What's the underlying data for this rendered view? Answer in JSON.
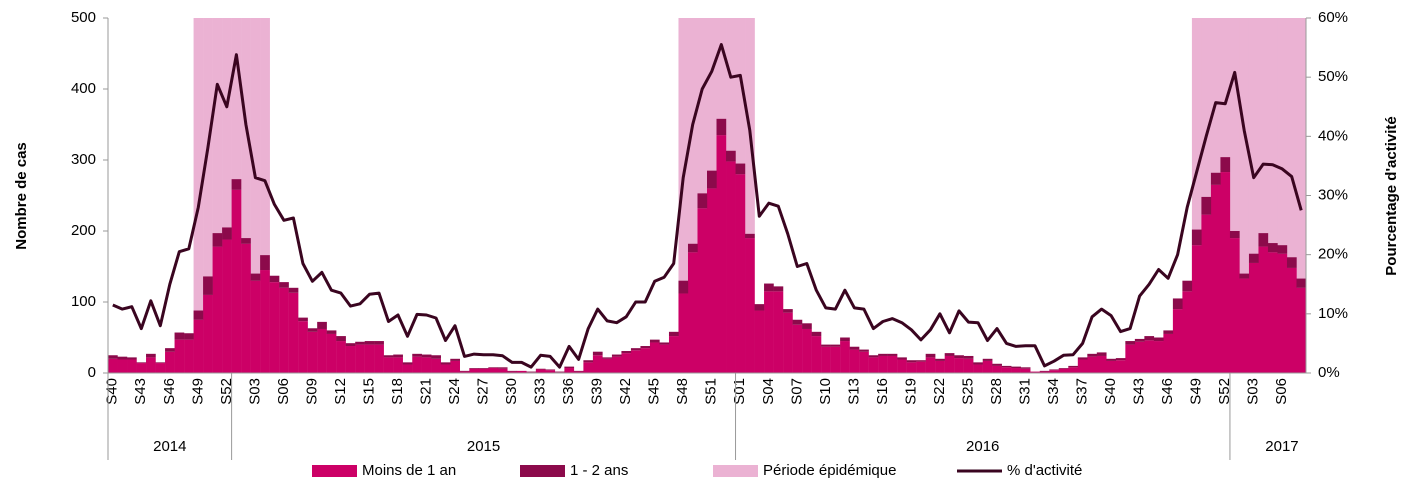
{
  "chart_data": {
    "type": "bar",
    "y_label": "Nombre de cas",
    "y2_label": "Pourcentage d'activité",
    "categories": [
      "S40",
      null,
      null,
      "S43",
      null,
      null,
      "S46",
      null,
      null,
      "S49",
      null,
      null,
      "S52",
      null,
      null,
      "S03",
      null,
      null,
      "S06",
      null,
      null,
      "S09",
      null,
      null,
      "S12",
      null,
      null,
      "S15",
      null,
      null,
      "S18",
      null,
      null,
      "S21",
      null,
      null,
      "S24",
      null,
      null,
      "S27",
      null,
      null,
      "S30",
      null,
      null,
      "S33",
      null,
      null,
      "S36",
      null,
      null,
      "S39",
      null,
      null,
      "S42",
      null,
      null,
      "S45",
      null,
      null,
      "S48",
      null,
      null,
      "S51",
      null,
      null,
      "S01",
      null,
      null,
      "S04",
      null,
      null,
      "S07",
      null,
      null,
      "S10",
      null,
      null,
      "S13",
      null,
      null,
      "S16",
      null,
      null,
      "S19",
      null,
      null,
      "S22",
      null,
      null,
      "S25",
      null,
      null,
      "S28",
      null,
      null,
      "S31",
      null,
      null,
      "S34",
      null,
      null,
      "S37",
      null,
      null,
      "S40",
      null,
      null,
      "S43",
      null,
      null,
      "S46",
      null,
      null,
      "S49",
      null,
      null,
      "S52",
      null,
      null,
      "S03",
      null,
      null,
      "S06",
      null,
      null
    ],
    "x_groups": [
      "2014",
      "2015",
      "2016",
      "2017"
    ],
    "series": [
      {
        "name": "Moins de 1 an",
        "color": "#cc0066",
        "values": [
          20,
          19,
          19,
          14,
          22,
          14,
          30,
          47,
          47,
          75,
          110,
          178,
          188,
          258,
          182,
          130,
          145,
          128,
          120,
          113,
          73,
          58,
          62,
          55,
          45,
          38,
          40,
          40,
          40,
          22,
          22,
          12,
          23,
          22,
          20,
          12,
          17,
          2,
          6,
          6,
          7,
          6,
          2,
          3,
          1,
          5,
          4,
          1,
          7,
          2,
          15,
          25,
          20,
          23,
          28,
          32,
          35,
          43,
          40,
          52,
          112,
          170,
          232,
          260,
          335,
          298,
          280,
          190,
          88,
          115,
          115,
          85,
          68,
          62,
          52,
          37,
          37,
          45,
          33,
          30,
          22,
          24,
          24,
          19,
          15,
          16,
          22,
          17,
          24,
          21,
          20,
          12,
          17,
          10,
          8,
          7,
          6,
          2,
          2,
          4,
          6,
          8,
          19,
          23,
          24,
          17,
          18,
          40,
          44,
          46,
          45,
          55,
          90,
          115,
          180,
          223,
          265,
          283,
          190,
          133,
          155,
          178,
          170,
          168,
          148,
          120
        ]
      },
      {
        "name": "1 - 2 ans",
        "color": "#8c0a4b",
        "values": [
          5,
          4,
          3,
          1,
          5,
          1,
          5,
          10,
          9,
          13,
          26,
          19,
          17,
          15,
          8,
          10,
          21,
          9,
          8,
          7,
          5,
          5,
          10,
          5,
          7,
          4,
          4,
          5,
          5,
          3,
          4,
          3,
          4,
          4,
          5,
          3,
          3,
          1,
          1,
          1,
          1,
          2,
          1,
          0,
          1,
          1,
          1,
          1,
          2,
          1,
          3,
          5,
          2,
          3,
          3,
          3,
          3,
          4,
          3,
          6,
          18,
          12,
          21,
          25,
          23,
          15,
          15,
          6,
          9,
          11,
          7,
          5,
          7,
          8,
          6,
          3,
          3,
          5,
          4,
          3,
          3,
          3,
          3,
          3,
          3,
          2,
          5,
          3,
          4,
          4,
          4,
          3,
          3,
          3,
          2,
          2,
          2,
          0,
          1,
          1,
          1,
          2,
          3,
          4,
          5,
          3,
          3,
          5,
          4,
          6,
          5,
          5,
          15,
          15,
          22,
          25,
          17,
          21,
          10,
          7,
          13,
          19,
          13,
          12,
          15,
          13
        ]
      },
      {
        "name": "Période épidémique",
        "color": "#ebb2d3",
        "kind": "band",
        "values": [
          null,
          null,
          null,
          null,
          null,
          null,
          null,
          null,
          null,
          500,
          500,
          500,
          500,
          500,
          500,
          500,
          500,
          null,
          null,
          null,
          null,
          null,
          null,
          null,
          null,
          null,
          null,
          null,
          null,
          null,
          null,
          null,
          null,
          null,
          null,
          null,
          null,
          null,
          null,
          null,
          null,
          null,
          null,
          null,
          null,
          null,
          null,
          null,
          null,
          null,
          null,
          null,
          null,
          null,
          null,
          null,
          null,
          null,
          null,
          null,
          500,
          500,
          500,
          500,
          500,
          500,
          500,
          500,
          null,
          null,
          null,
          null,
          null,
          null,
          null,
          null,
          null,
          null,
          null,
          null,
          null,
          null,
          null,
          null,
          null,
          null,
          null,
          null,
          null,
          null,
          null,
          null,
          null,
          null,
          null,
          null,
          null,
          null,
          null,
          null,
          null,
          null,
          null,
          null,
          null,
          null,
          null,
          null,
          null,
          null,
          null,
          null,
          null,
          null,
          500,
          500,
          500,
          500,
          500,
          500,
          500,
          500,
          500,
          500,
          500,
          500
        ]
      },
      {
        "name": "% d'activité",
        "color": "#3a0520",
        "kind": "line",
        "axis": "y2",
        "values": [
          11.5,
          10.8,
          11.2,
          7.5,
          12.2,
          8,
          15,
          20.5,
          21,
          28,
          38,
          48.8,
          45,
          53.8,
          42,
          33,
          32.5,
          28.5,
          25.8,
          26.2,
          18.5,
          15.5,
          17,
          14,
          13.5,
          11.3,
          11.7,
          13.3,
          13.5,
          8.7,
          9.8,
          6.2,
          9.9,
          9.8,
          9.3,
          5.5,
          8,
          2.8,
          3.2,
          3.1,
          3.1,
          2.9,
          1.8,
          1.8,
          1,
          3,
          2.8,
          1,
          4.5,
          2.3,
          7.5,
          10.8,
          8.8,
          8.5,
          9.5,
          12,
          12,
          15.5,
          16.2,
          18.5,
          33,
          42,
          48,
          51,
          55.5,
          50,
          50.3,
          41,
          26.5,
          28.7,
          28.2,
          23.5,
          18,
          18.5,
          14,
          11,
          10.8,
          14,
          11,
          10.8,
          7.5,
          8.7,
          9.2,
          8.5,
          7.3,
          5.6,
          7.3,
          10,
          6.8,
          10.5,
          8.6,
          8.5,
          5.5,
          7.5,
          5,
          4.5,
          4.6,
          4.6,
          1.2,
          2,
          3,
          3.1,
          5,
          9.5,
          10.8,
          9.7,
          7,
          7.5,
          13,
          15,
          17.5,
          16,
          20,
          28,
          34,
          40,
          45.7,
          45.5,
          50.8,
          41,
          33,
          35.3,
          35.2,
          34.5,
          33.2,
          27.5
        ]
      }
    ],
    "ylim": [
      0,
      500
    ],
    "yticks": [
      0,
      100,
      200,
      300,
      400,
      500
    ],
    "y2lim": [
      0,
      60
    ],
    "y2ticks": [
      {
        "value": 0,
        "label": "0%"
      },
      {
        "value": 10,
        "label": "10%"
      },
      {
        "value": 20,
        "label": "20%"
      },
      {
        "value": 30,
        "label": "30%"
      },
      {
        "value": 40,
        "label": "40%"
      },
      {
        "value": 50,
        "label": "50%"
      },
      {
        "value": 60,
        "label": "60%"
      }
    ],
    "grid": false
  }
}
